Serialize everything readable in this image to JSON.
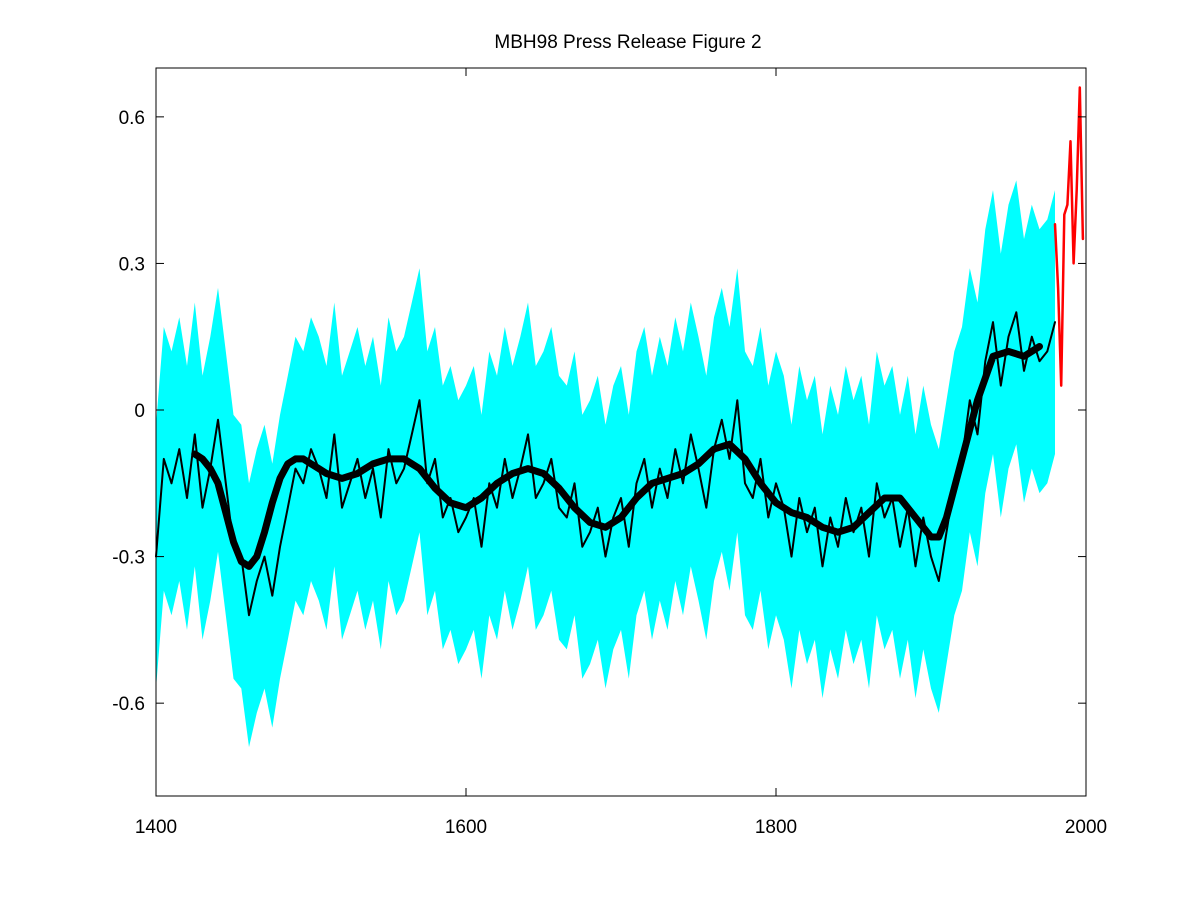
{
  "chart_data": {
    "type": "line",
    "title": "MBH98 Press Release Figure 2",
    "xlabel": "",
    "ylabel": "",
    "xlim": [
      1400,
      2000
    ],
    "ylim": [
      -0.79,
      0.7
    ],
    "x_ticks": [
      1400,
      1600,
      1800,
      2000
    ],
    "x_tick_labels": [
      "1400",
      "1600",
      "1800",
      "2000"
    ],
    "y_ticks": [
      -0.6,
      -0.3,
      0,
      0.3,
      0.6
    ],
    "y_tick_labels": [
      "-0.6",
      "-0.3",
      "0",
      "0.3",
      "0.6"
    ],
    "grid": false,
    "legend": "none",
    "colors": {
      "uncertainty_band": "#00ffff",
      "reconstruction": "#000000",
      "smoothed": "#000000",
      "instrumental": "#ff0000"
    },
    "band_half_width": 0.27,
    "series": [
      {
        "role": "reconstruction",
        "x": [
          1400,
          1405,
          1410,
          1415,
          1420,
          1425,
          1430,
          1435,
          1440,
          1445,
          1450,
          1455,
          1460,
          1465,
          1470,
          1475,
          1480,
          1485,
          1490,
          1495,
          1500,
          1505,
          1510,
          1515,
          1520,
          1525,
          1530,
          1535,
          1540,
          1545,
          1550,
          1555,
          1560,
          1565,
          1570,
          1575,
          1580,
          1585,
          1590,
          1595,
          1600,
          1605,
          1610,
          1615,
          1620,
          1625,
          1630,
          1635,
          1640,
          1645,
          1650,
          1655,
          1660,
          1665,
          1670,
          1675,
          1680,
          1685,
          1690,
          1695,
          1700,
          1705,
          1710,
          1715,
          1720,
          1725,
          1730,
          1735,
          1740,
          1745,
          1750,
          1755,
          1760,
          1765,
          1770,
          1775,
          1780,
          1785,
          1790,
          1795,
          1800,
          1805,
          1810,
          1815,
          1820,
          1825,
          1830,
          1835,
          1840,
          1845,
          1850,
          1855,
          1860,
          1865,
          1870,
          1875,
          1880,
          1885,
          1890,
          1895,
          1900,
          1905,
          1910,
          1915,
          1920,
          1925,
          1930,
          1935,
          1940,
          1945,
          1950,
          1955,
          1960,
          1965,
          1970,
          1975,
          1980
        ],
        "y": [
          -0.3,
          -0.1,
          -0.15,
          -0.08,
          -0.18,
          -0.05,
          -0.2,
          -0.12,
          -0.02,
          -0.15,
          -0.28,
          -0.3,
          -0.42,
          -0.35,
          -0.3,
          -0.38,
          -0.28,
          -0.2,
          -0.12,
          -0.15,
          -0.08,
          -0.12,
          -0.18,
          -0.05,
          -0.2,
          -0.15,
          -0.1,
          -0.18,
          -0.12,
          -0.22,
          -0.08,
          -0.15,
          -0.12,
          -0.05,
          0.02,
          -0.15,
          -0.1,
          -0.22,
          -0.18,
          -0.25,
          -0.22,
          -0.18,
          -0.28,
          -0.15,
          -0.2,
          -0.1,
          -0.18,
          -0.12,
          -0.05,
          -0.18,
          -0.15,
          -0.1,
          -0.2,
          -0.22,
          -0.15,
          -0.28,
          -0.25,
          -0.2,
          -0.3,
          -0.22,
          -0.18,
          -0.28,
          -0.15,
          -0.1,
          -0.2,
          -0.12,
          -0.18,
          -0.08,
          -0.15,
          -0.05,
          -0.12,
          -0.2,
          -0.08,
          -0.02,
          -0.1,
          0.02,
          -0.15,
          -0.18,
          -0.1,
          -0.22,
          -0.15,
          -0.2,
          -0.3,
          -0.18,
          -0.25,
          -0.2,
          -0.32,
          -0.22,
          -0.28,
          -0.18,
          -0.25,
          -0.2,
          -0.3,
          -0.15,
          -0.22,
          -0.18,
          -0.28,
          -0.2,
          -0.32,
          -0.22,
          -0.3,
          -0.35,
          -0.25,
          -0.15,
          -0.1,
          0.02,
          -0.05,
          0.1,
          0.18,
          0.05,
          0.15,
          0.2,
          0.08,
          0.15,
          0.1,
          0.12,
          0.18
        ]
      },
      {
        "role": "smoothed",
        "x": [
          1425,
          1430,
          1435,
          1440,
          1445,
          1450,
          1455,
          1460,
          1465,
          1470,
          1475,
          1480,
          1485,
          1490,
          1495,
          1500,
          1505,
          1510,
          1520,
          1530,
          1540,
          1550,
          1560,
          1570,
          1580,
          1590,
          1600,
          1610,
          1620,
          1630,
          1640,
          1650,
          1660,
          1670,
          1680,
          1690,
          1700,
          1710,
          1720,
          1730,
          1740,
          1750,
          1760,
          1770,
          1780,
          1790,
          1800,
          1810,
          1820,
          1830,
          1840,
          1850,
          1860,
          1870,
          1880,
          1890,
          1900,
          1905,
          1910,
          1920,
          1930,
          1940,
          1950,
          1960,
          1970
        ],
        "y": [
          -0.09,
          -0.1,
          -0.12,
          -0.15,
          -0.21,
          -0.27,
          -0.31,
          -0.32,
          -0.3,
          -0.25,
          -0.19,
          -0.14,
          -0.11,
          -0.1,
          -0.1,
          -0.11,
          -0.12,
          -0.13,
          -0.14,
          -0.13,
          -0.11,
          -0.1,
          -0.1,
          -0.12,
          -0.16,
          -0.19,
          -0.2,
          -0.18,
          -0.15,
          -0.13,
          -0.12,
          -0.13,
          -0.16,
          -0.2,
          -0.23,
          -0.24,
          -0.22,
          -0.18,
          -0.15,
          -0.14,
          -0.13,
          -0.11,
          -0.08,
          -0.07,
          -0.1,
          -0.15,
          -0.19,
          -0.21,
          -0.22,
          -0.24,
          -0.25,
          -0.24,
          -0.21,
          -0.18,
          -0.18,
          -0.22,
          -0.26,
          -0.26,
          -0.22,
          -0.1,
          0.02,
          0.11,
          0.12,
          0.11,
          0.13
        ]
      },
      {
        "role": "instrumental",
        "x": [
          1980,
          1982,
          1984,
          1986,
          1988,
          1990,
          1992,
          1994,
          1996,
          1998
        ],
        "y": [
          0.38,
          0.25,
          0.05,
          0.4,
          0.42,
          0.55,
          0.3,
          0.45,
          0.66,
          0.35
        ]
      }
    ]
  }
}
